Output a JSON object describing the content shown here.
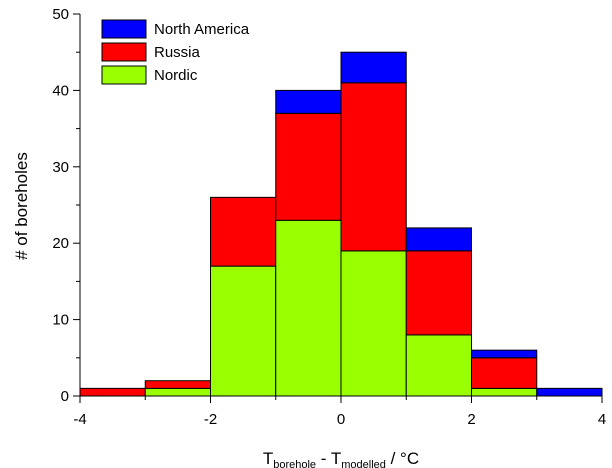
{
  "chart_data": {
    "type": "bar",
    "stacked": true,
    "bins": [
      {
        "x0": -4,
        "x1": -3
      },
      {
        "x0": -3,
        "x1": -2
      },
      {
        "x0": -2,
        "x1": -1
      },
      {
        "x0": -1,
        "x1": 0
      },
      {
        "x0": 0,
        "x1": 1
      },
      {
        "x0": 1,
        "x1": 2
      },
      {
        "x0": 2,
        "x1": 3
      },
      {
        "x0": 3,
        "x1": 4
      }
    ],
    "series": [
      {
        "name": "Nordic",
        "color": "#99ff00",
        "values": [
          0,
          1,
          17,
          23,
          19,
          8,
          1,
          0
        ]
      },
      {
        "name": "Russia",
        "color": "#ff0000",
        "values": [
          1,
          1,
          9,
          14,
          22,
          11,
          4,
          0
        ]
      },
      {
        "name": "North America",
        "color": "#0000ff",
        "values": [
          0,
          0,
          0,
          3,
          4,
          3,
          1,
          1
        ]
      }
    ],
    "legend_order": [
      "North America",
      "Russia",
      "Nordic"
    ],
    "legend_position": "top-left",
    "xlim": [
      -4,
      4
    ],
    "ylim": [
      0,
      50
    ],
    "xticks": [
      -4,
      -2,
      0,
      2,
      4
    ],
    "xtick_labels": [
      "-4",
      "-2",
      "0",
      "2",
      "4"
    ],
    "yticks": [
      0,
      10,
      20,
      30,
      40,
      50
    ],
    "ytick_labels": [
      "0",
      "10",
      "20",
      "30",
      "40",
      "50"
    ],
    "ylabel": "# of boreholes",
    "xlabel": {
      "part1": "T",
      "sub1": "borehole",
      "middle": " - T",
      "sub2": "modelled",
      "part2": " / °C"
    },
    "grid": false
  }
}
